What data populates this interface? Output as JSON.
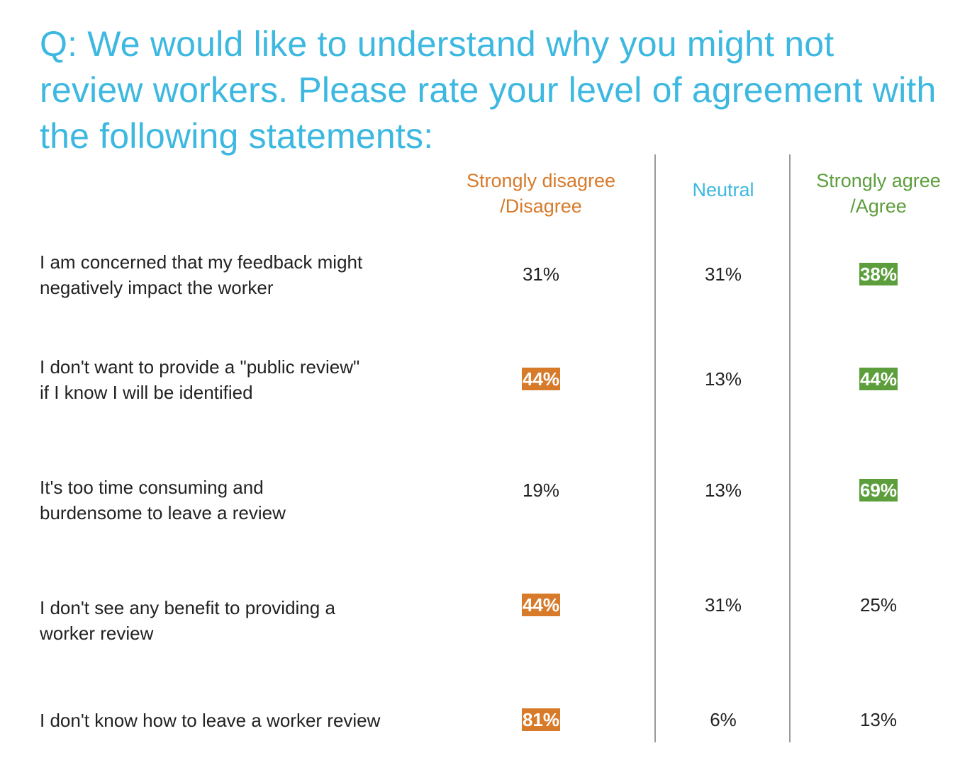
{
  "title": "Q: We would like to understand why you might not review workers. Please rate your level of agreement with the following statements:",
  "colors": {
    "title": "#3db8e0",
    "disagree": "#d77a2a",
    "neutral": "#3db8e0",
    "agree": "#5c9e3c",
    "text": "#222222"
  },
  "chart_data": {
    "type": "table",
    "columns": [
      {
        "key": "disagree",
        "label_lines": [
          "Strongly disagree",
          "/Disagree"
        ]
      },
      {
        "key": "neutral",
        "label_lines": [
          "Neutral"
        ]
      },
      {
        "key": "agree",
        "label_lines": [
          "Strongly agree",
          "/Agree"
        ]
      }
    ],
    "rows": [
      {
        "label_lines": [
          "I am concerned that my feedback might",
          "negatively impact the worker"
        ],
        "values": [
          "31%",
          "31%",
          "38%"
        ],
        "highlight": [
          false,
          false,
          true
        ]
      },
      {
        "label_lines": [
          "I don't want to provide a \"public review\"",
          "if I know I will be identified"
        ],
        "values": [
          "44%",
          "13%",
          "44%"
        ],
        "highlight": [
          true,
          false,
          true
        ]
      },
      {
        "label_lines": [
          "It's too time consuming and",
          "burdensome to leave a review"
        ],
        "values": [
          "19%",
          "13%",
          "69%"
        ],
        "highlight": [
          false,
          false,
          true
        ]
      },
      {
        "label_lines": [
          "I don't see any benefit to providing a",
          "worker review"
        ],
        "values": [
          "44%",
          "31%",
          "25%"
        ],
        "highlight": [
          true,
          false,
          false
        ]
      },
      {
        "label_lines": [
          "I don't know how to leave a worker review"
        ],
        "values": [
          "81%",
          "6%",
          "13%"
        ],
        "highlight": [
          true,
          false,
          false
        ]
      }
    ]
  }
}
